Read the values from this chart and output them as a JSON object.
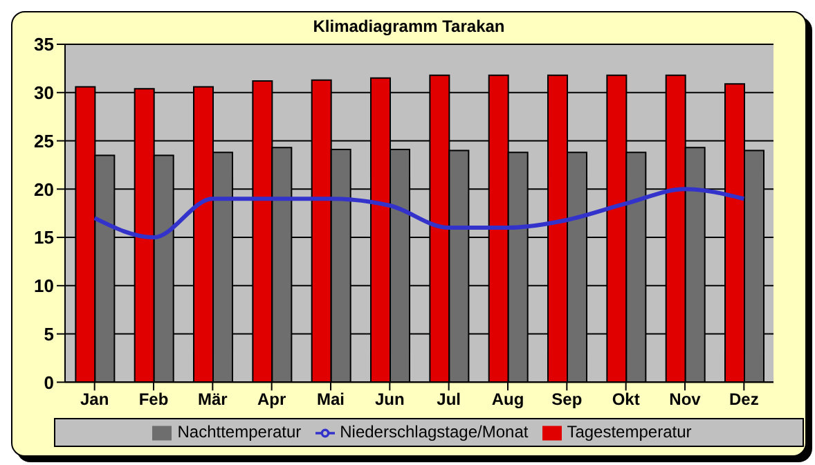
{
  "chart_data": {
    "type": "bar",
    "title": "Klimadiagramm Tarakan",
    "categories": [
      "Jan",
      "Feb",
      "Mär",
      "Apr",
      "Mai",
      "Jun",
      "Jul",
      "Aug",
      "Sep",
      "Okt",
      "Nov",
      "Dez"
    ],
    "series": [
      {
        "name": "Tagestemperatur",
        "color": "#e00000",
        "values": [
          30.6,
          30.4,
          30.6,
          31.2,
          31.3,
          31.5,
          31.8,
          31.8,
          31.8,
          31.8,
          31.8,
          30.9
        ]
      },
      {
        "name": "Nachttemperatur",
        "color": "#6e6e6e",
        "values": [
          23.5,
          23.5,
          23.8,
          24.3,
          24.1,
          24.1,
          24.0,
          23.8,
          23.8,
          23.8,
          24.3,
          24.0
        ]
      },
      {
        "name": "Niederschlagstage/Monat",
        "type": "line",
        "color": "#3333cc",
        "values": [
          17.0,
          15.0,
          19.0,
          19.0,
          19.0,
          18.3,
          16.0,
          16.0,
          16.8,
          18.5,
          20.0,
          19.0
        ]
      }
    ],
    "ylim": [
      0,
      35
    ],
    "yticks": [
      0,
      5,
      10,
      15,
      20,
      25,
      30,
      35
    ],
    "grid": "y",
    "legend": "bottom",
    "marker": "none"
  }
}
